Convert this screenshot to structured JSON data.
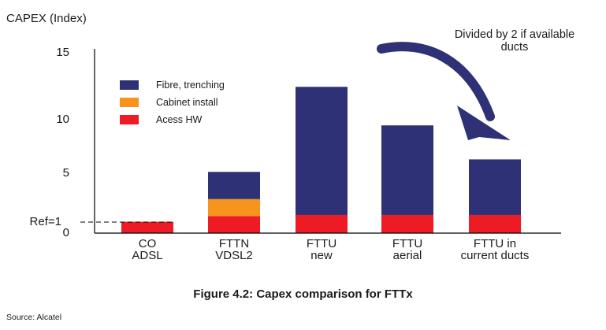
{
  "chart_data": {
    "type": "bar",
    "stacked": true,
    "ylabel": "CAPEX (Index)",
    "ylim": [
      0,
      15
    ],
    "yticks": [
      "0",
      "5",
      "10",
      "15"
    ],
    "ref_line": {
      "label": "Ref=1",
      "value": 1
    },
    "categories": [
      [
        "CO",
        "ADSL"
      ],
      [
        "FTTN",
        "VDSL2"
      ],
      [
        "FTTU",
        "new"
      ],
      [
        "FTTU",
        "aerial"
      ],
      [
        "FTTU in",
        "current ducts"
      ]
    ],
    "series": [
      {
        "name": "Acess HW",
        "color": "#ed1c24",
        "values": [
          1.0,
          1.5,
          1.6,
          1.6,
          1.6
        ]
      },
      {
        "name": "Cabinet install",
        "color": "#f7941d",
        "values": [
          0,
          1.5,
          0,
          0,
          0
        ]
      },
      {
        "name": "Fibre, trenching",
        "color": "#2e3176",
        "values": [
          0,
          2.4,
          11.3,
          7.9,
          4.9
        ]
      }
    ],
    "legend": [
      "Fibre, trenching",
      "Cabinet install",
      "Acess HW"
    ],
    "annotation": [
      "Divided by 2 if available",
      "ducts"
    ],
    "arrow_color": "#2e3176"
  },
  "caption": "Figure 4.2: Capex comparison for FTTx",
  "source": "Source: Alcatel"
}
